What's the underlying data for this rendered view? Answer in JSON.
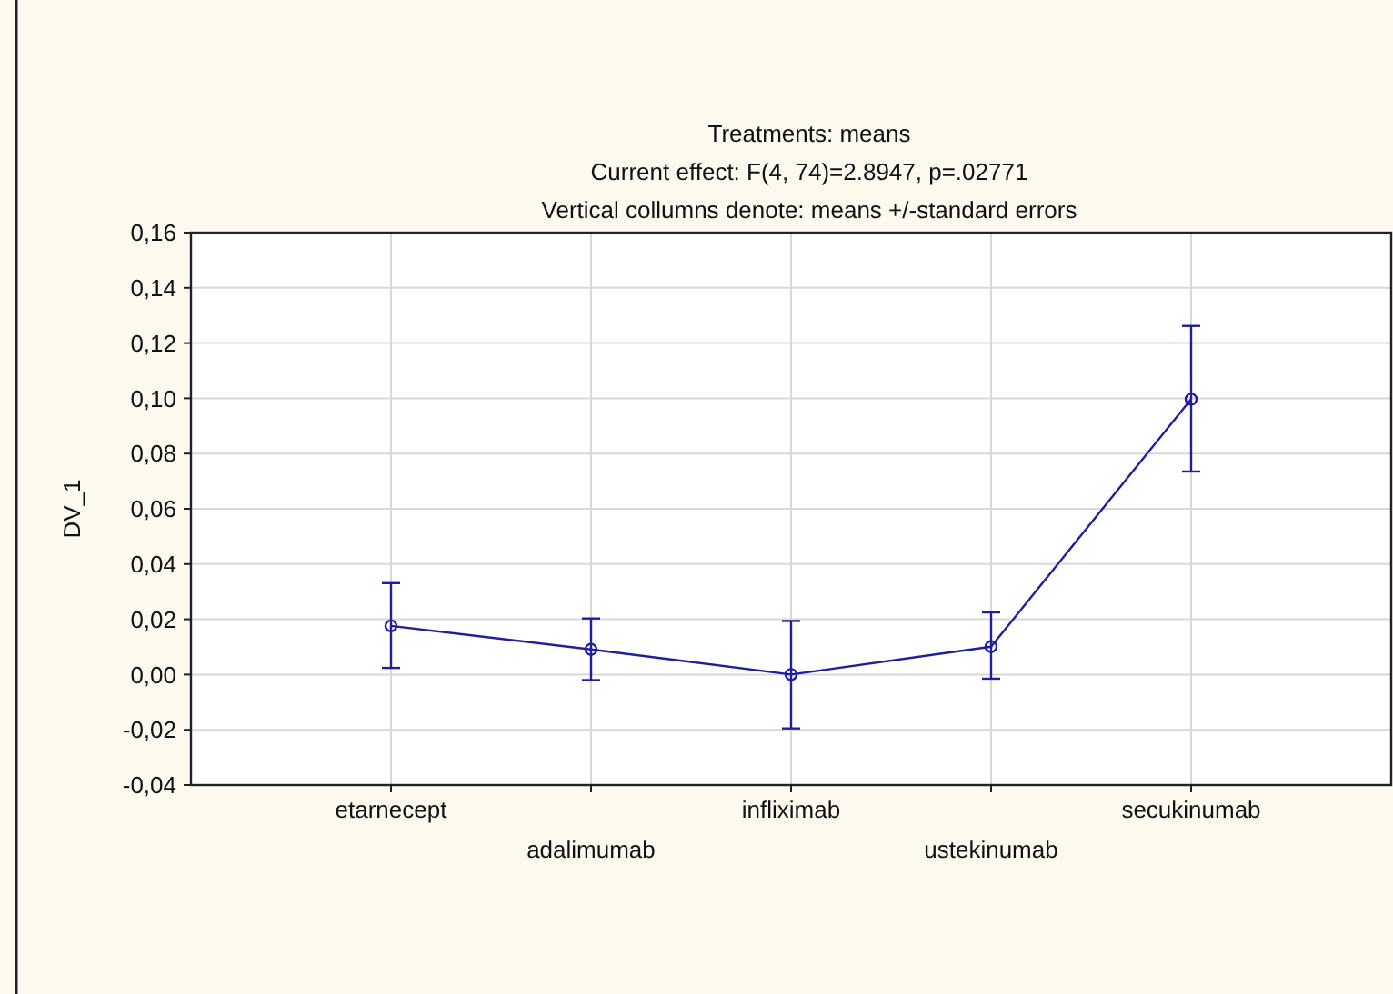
{
  "chart_data": {
    "type": "line",
    "title": "Treatments: means",
    "subtitle": "Current effect: F(4, 74)=2.8947, p=.02771",
    "annotations": [
      "Vertical collumns denote: means +/-standard errors"
    ],
    "ylabel": "DV_1",
    "categories": [
      "etarnecept",
      "adalimumab",
      "infliximab",
      "ustekinumab",
      "secukinumab"
    ],
    "series": [
      {
        "color": "#1f1f9e",
        "values": [
          0.0176,
          0.0091,
          0.0,
          0.0101,
          0.0997
        ],
        "errors": [
          [
            0.0024,
            0.0331
          ],
          [
            -0.002,
            0.0203
          ],
          [
            -0.0195,
            0.0194
          ],
          [
            -0.0015,
            0.0225
          ],
          [
            0.0735,
            0.1262
          ]
        ]
      }
    ],
    "ylim": [
      -0.04,
      0.16
    ],
    "yticks": [
      {
        "value": -0.04,
        "label": "-0,04"
      },
      {
        "value": -0.02,
        "label": "-0,02"
      },
      {
        "value": 0,
        "label": "0,00"
      },
      {
        "value": 0.02,
        "label": "0,02"
      },
      {
        "value": 0.04,
        "label": "0,04"
      },
      {
        "value": 0.06,
        "label": "0,06"
      },
      {
        "value": 0.08,
        "label": "0,08"
      },
      {
        "value": 0.1,
        "label": "0,10"
      },
      {
        "value": 0.12,
        "label": "0,12"
      },
      {
        "value": 0.14,
        "label": "0,14"
      },
      {
        "value": 0.16,
        "label": "0,16"
      }
    ],
    "grid": true,
    "marker": "circle",
    "line_style": "solid"
  }
}
